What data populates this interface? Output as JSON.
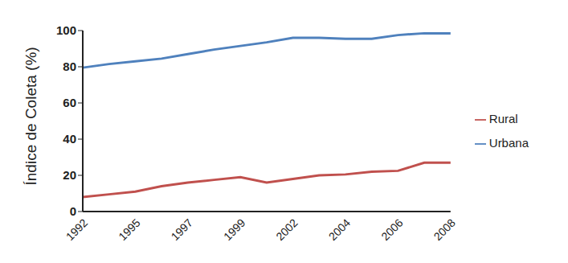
{
  "chart_data": {
    "type": "line",
    "y_label": "Índice de Coleta (%)",
    "categories": [
      "1992",
      null,
      "1995",
      null,
      "1997",
      null,
      "1999",
      null,
      "2002",
      null,
      "2004",
      null,
      "2006",
      null,
      "2008"
    ],
    "series": [
      {
        "name": "Urbana",
        "color": "#4f81bd",
        "values": [
          79.5,
          81.5,
          83,
          84.5,
          87,
          89.5,
          91.5,
          93.5,
          96,
          96,
          95.5,
          95.5,
          97.5,
          98.5,
          98.5
        ]
      },
      {
        "name": "Rural",
        "color": "#c0504d",
        "values": [
          8,
          9.5,
          11,
          14,
          16,
          17.5,
          19,
          16,
          18,
          20,
          20.5,
          22,
          22.5,
          27,
          27
        ]
      }
    ],
    "ylim": [
      0,
      100
    ],
    "yticks": [
      0,
      20,
      40,
      60,
      80,
      100
    ],
    "grid": false,
    "legend": "right"
  }
}
